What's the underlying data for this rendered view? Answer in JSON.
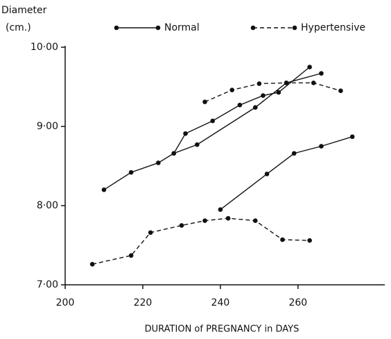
{
  "chart_data": {
    "type": "line",
    "ylabel": [
      "Diameter",
      "(cm.)"
    ],
    "xlabel": "DURATION of PREGNANCY in DAYS",
    "xlim": [
      200,
      282
    ],
    "ylim": [
      7,
      10
    ],
    "xticks": [
      200,
      220,
      240,
      260
    ],
    "yticks": [
      {
        "value": 7,
        "label": "7·00"
      },
      {
        "value": 8,
        "label": "8·00"
      },
      {
        "value": 9,
        "label": "9·00"
      },
      {
        "value": 10,
        "label": "10·00"
      }
    ],
    "series": [
      {
        "name": "Normal",
        "color": "#111111",
        "dashed": false,
        "lines": [
          {
            "x": [
              210,
              217,
              224,
              228,
              231,
              238,
              245,
              251,
              255,
              263
            ],
            "values": [
              8.2,
              8.42,
              8.54,
              8.66,
              8.91,
              9.07,
              9.27,
              9.39,
              9.43,
              9.75
            ]
          },
          {
            "x": [
              228,
              234,
              249,
              257,
              266
            ],
            "values": [
              8.66,
              8.77,
              9.24,
              9.55,
              9.67
            ]
          },
          {
            "x": [
              240,
              252,
              259,
              266,
              274
            ],
            "values": [
              7.95,
              8.4,
              8.66,
              8.75,
              8.87
            ]
          }
        ]
      },
      {
        "name": "Hypertensive",
        "color": "#111111",
        "dashed": true,
        "lines": [
          {
            "x": [
              236,
              243,
              250,
              257,
              264,
              271
            ],
            "values": [
              9.31,
              9.46,
              9.54,
              9.55,
              9.55,
              9.45
            ]
          },
          {
            "x": [
              207,
              217,
              222,
              230,
              236,
              242,
              249,
              256,
              263
            ],
            "values": [
              7.26,
              7.37,
              7.66,
              7.75,
              7.81,
              7.84,
              7.81,
              7.57,
              7.56
            ]
          }
        ]
      }
    ]
  }
}
